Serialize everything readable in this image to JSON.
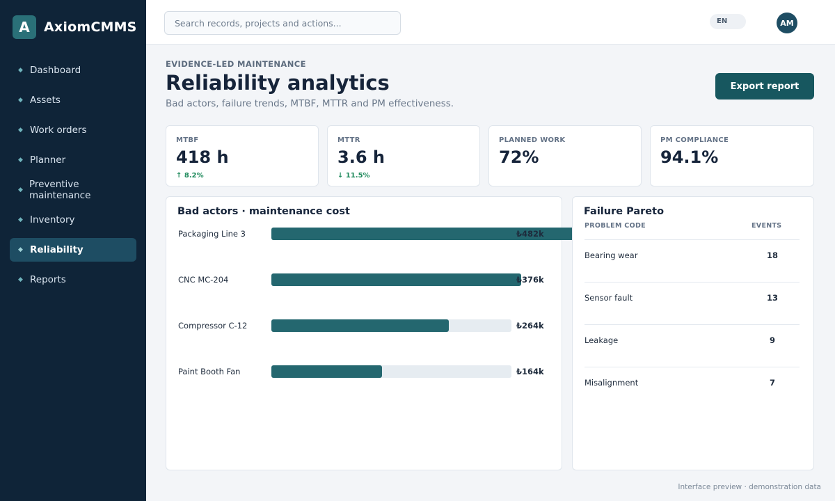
{
  "brand": {
    "logo_letter": "A",
    "name": "AxiomCMMS"
  },
  "sidebar": {
    "items": [
      {
        "label": "Dashboard",
        "active": false
      },
      {
        "label": "Assets",
        "active": false
      },
      {
        "label": "Work orders",
        "active": false
      },
      {
        "label": "Planner",
        "active": false
      },
      {
        "label": "Preventive maintenance",
        "active": false
      },
      {
        "label": "Inventory",
        "active": false
      },
      {
        "label": "Reliability",
        "active": true
      },
      {
        "label": "Reports",
        "active": false
      }
    ]
  },
  "topbar": {
    "search_placeholder": "Search records, projects and actions...",
    "language": "EN",
    "avatar_initials": "AM"
  },
  "header": {
    "eyebrow": "EVIDENCE-LED MAINTENANCE",
    "title": "Reliability analytics",
    "subtitle": "Bad actors, failure trends, MTBF, MTTR and PM effectiveness.",
    "export_label": "Export report"
  },
  "kpis": [
    {
      "label": "MTBF",
      "value": "418 h",
      "delta": "↑ 8.2%"
    },
    {
      "label": "MTTR",
      "value": "3.6 h",
      "delta": "↓ 11.5%"
    },
    {
      "label": "PLANNED WORK",
      "value": "72%",
      "delta": ""
    },
    {
      "label": "PM COMPLIANCE",
      "value": "94.1%",
      "delta": ""
    }
  ],
  "bad_actors": {
    "title": "Bad actors · maintenance cost",
    "rows": [
      {
        "asset": "Packaging Line 3",
        "value_label": "₺482k"
      },
      {
        "asset": "CNC MC-204",
        "value_label": "₺376k"
      },
      {
        "asset": "Compressor C-12",
        "value_label": "₺264k"
      },
      {
        "asset": "Paint Booth Fan",
        "value_label": "₺164k"
      }
    ]
  },
  "chart_data": {
    "type": "bar",
    "categories": [
      "Packaging Line 3",
      "CNC MC-204",
      "Compressor C-12",
      "Paint Booth Fan"
    ],
    "values": [
      482,
      376,
      264,
      164
    ],
    "fill_fraction": [
      1.33,
      1.04,
      0.74,
      0.46
    ],
    "title": "Bad actors · maintenance cost"
  },
  "pareto": {
    "title": "Failure Pareto",
    "col_code": "PROBLEM CODE",
    "col_events": "EVENTS",
    "rows": [
      {
        "code": "Bearing wear",
        "events": "18"
      },
      {
        "code": "Sensor fault",
        "events": "13"
      },
      {
        "code": "Leakage",
        "events": "9"
      },
      {
        "code": "Misalignment",
        "events": "7"
      }
    ]
  },
  "footer_note": "Interface preview · demonstration data",
  "colors": {
    "accent": "#17575f",
    "sidebar": "#0f2438",
    "bar": "#24676f",
    "positive": "#1f8a5c"
  }
}
